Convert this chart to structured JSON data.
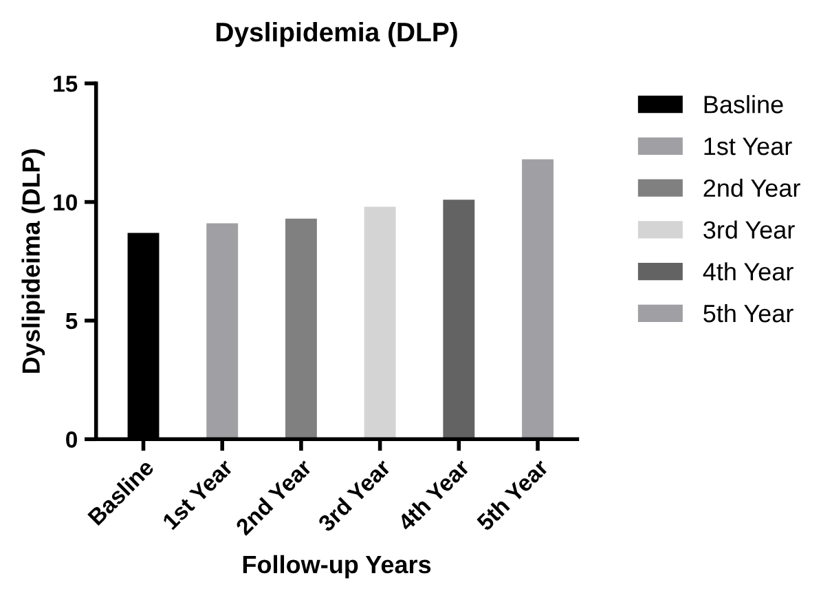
{
  "chart_data": {
    "type": "bar",
    "title": "Dyslipidemia (DLP)",
    "xlabel": "Follow-up Years",
    "ylabel": "Dyslipideima (DLP)",
    "categories": [
      "Basline",
      "1st Year",
      "2nd Year",
      "3rd Year",
      "4th Year",
      "5th Year"
    ],
    "series": [
      {
        "name": "Basline",
        "color": "#000000",
        "values": [
          8.7,
          null,
          null,
          null,
          null,
          null
        ]
      },
      {
        "name": "1st Year",
        "color": "#a0a0a4",
        "values": [
          null,
          9.1,
          null,
          null,
          null,
          null
        ]
      },
      {
        "name": "2nd Year",
        "color": "#808080",
        "values": [
          null,
          null,
          9.3,
          null,
          null,
          null
        ]
      },
      {
        "name": "3rd Year",
        "color": "#d4d4d4",
        "values": [
          null,
          null,
          null,
          9.8,
          null,
          null
        ]
      },
      {
        "name": "4th Year",
        "color": "#636363",
        "values": [
          null,
          null,
          null,
          null,
          10.1,
          null
        ]
      },
      {
        "name": "5th Year",
        "color": "#a0a0a4",
        "values": [
          null,
          null,
          null,
          null,
          null,
          11.8
        ]
      }
    ],
    "ylim": [
      0,
      15
    ],
    "yticks": [
      0,
      5,
      10,
      15
    ],
    "grid": false,
    "legend": "right"
  }
}
